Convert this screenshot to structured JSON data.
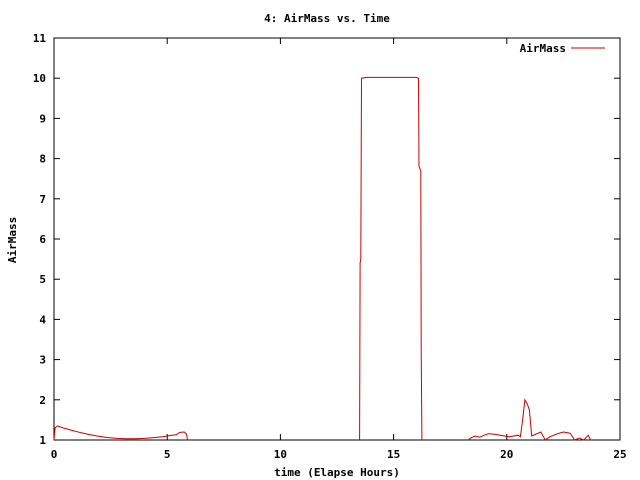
{
  "chart_data": {
    "type": "line",
    "title": "4: AirMass vs. Time",
    "xlabel": "time (Elapse Hours)",
    "ylabel": "AirMass",
    "xlim": [
      0,
      25
    ],
    "ylim": [
      1,
      11
    ],
    "xticks": [
      0,
      5,
      10,
      15,
      20,
      25
    ],
    "yticks": [
      1,
      2,
      3,
      4,
      5,
      6,
      7,
      8,
      9,
      10,
      11
    ],
    "grid": false,
    "legend_position": "top-right",
    "series": [
      {
        "name": "AirMass",
        "color": "#cc0000",
        "segments": [
          [
            [
              0.0,
              1.0
            ],
            [
              0.05,
              1.3
            ],
            [
              0.15,
              1.35
            ],
            [
              0.4,
              1.3
            ],
            [
              0.8,
              1.24
            ],
            [
              1.2,
              1.18
            ],
            [
              1.6,
              1.13
            ],
            [
              2.0,
              1.09
            ],
            [
              2.4,
              1.06
            ],
            [
              2.8,
              1.04
            ],
            [
              3.2,
              1.03
            ],
            [
              3.6,
              1.03
            ],
            [
              4.0,
              1.04
            ],
            [
              4.4,
              1.06
            ],
            [
              4.8,
              1.08
            ],
            [
              5.2,
              1.12
            ],
            [
              5.4,
              1.13
            ],
            [
              5.55,
              1.19
            ],
            [
              5.75,
              1.2
            ],
            [
              5.85,
              1.15
            ],
            [
              5.9,
              1.0
            ]
          ],
          [
            [
              13.5,
              1.0
            ],
            [
              13.52,
              5.4
            ],
            [
              13.55,
              5.5
            ],
            [
              13.58,
              10.0
            ],
            [
              13.8,
              10.02
            ],
            [
              16.0,
              10.02
            ],
            [
              16.1,
              10.0
            ],
            [
              16.12,
              7.8
            ],
            [
              16.2,
              7.7
            ],
            [
              16.22,
              3.3
            ],
            [
              16.25,
              1.0
            ]
          ],
          [
            [
              18.3,
              1.0
            ],
            [
              18.4,
              1.05
            ],
            [
              18.6,
              1.1
            ],
            [
              18.8,
              1.07
            ],
            [
              19.0,
              1.12
            ],
            [
              19.2,
              1.16
            ],
            [
              19.5,
              1.14
            ],
            [
              19.8,
              1.11
            ],
            [
              20.1,
              1.08
            ],
            [
              20.3,
              1.1
            ],
            [
              20.5,
              1.12
            ],
            [
              20.6,
              1.08
            ],
            [
              20.7,
              1.5
            ],
            [
              20.8,
              2.0
            ],
            [
              20.9,
              1.9
            ],
            [
              21.0,
              1.75
            ],
            [
              21.1,
              1.1
            ],
            [
              21.3,
              1.15
            ],
            [
              21.5,
              1.2
            ],
            [
              21.7,
              1.0
            ],
            [
              21.9,
              1.08
            ],
            [
              22.2,
              1.15
            ],
            [
              22.5,
              1.2
            ],
            [
              22.8,
              1.17
            ],
            [
              23.0,
              1.0
            ],
            [
              23.2,
              1.05
            ],
            [
              23.4,
              1.0
            ],
            [
              23.6,
              1.12
            ],
            [
              23.7,
              1.0
            ]
          ]
        ]
      }
    ]
  }
}
